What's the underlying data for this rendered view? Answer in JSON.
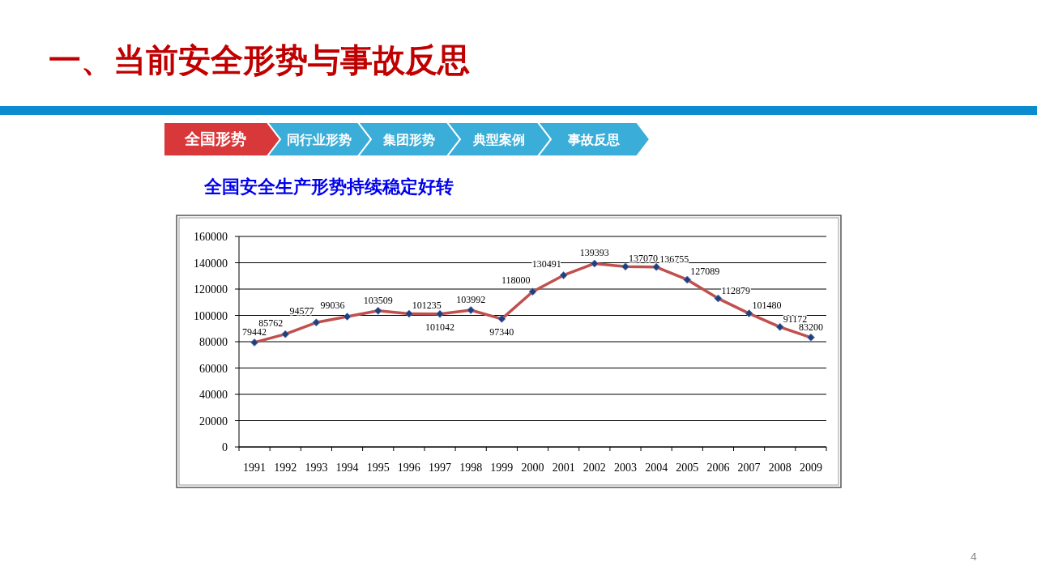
{
  "chart_data": {
    "type": "line",
    "title": "一、当前安全形势与事故反思",
    "subtitle": "全国安全生产形势持续稳定好转",
    "categories": [
      "1991",
      "1992",
      "1993",
      "1994",
      "1995",
      "1996",
      "1997",
      "1998",
      "1999",
      "2000",
      "2001",
      "2002",
      "2003",
      "2004",
      "2005",
      "2006",
      "2007",
      "2008",
      "2009"
    ],
    "series": [
      {
        "color": "#c0504d",
        "values": [
          79442,
          85762,
          94577,
          99036,
          103509,
          101235,
          101042,
          103992,
          97340,
          118000,
          130491,
          139393,
          137070,
          136755,
          127089,
          112879,
          101480,
          91172,
          83200
        ]
      }
    ],
    "ylim": [
      0,
      160000
    ],
    "yticks": [
      0,
      20000,
      40000,
      60000,
      80000,
      100000,
      120000,
      140000,
      160000
    ],
    "grid": "y",
    "marker": "diamond",
    "line_style": "solid",
    "data_labels": true,
    "annotations": [
      "全国形势",
      "同行业形势",
      "集团形势",
      "典型案例",
      "事故反思",
      "4"
    ]
  }
}
